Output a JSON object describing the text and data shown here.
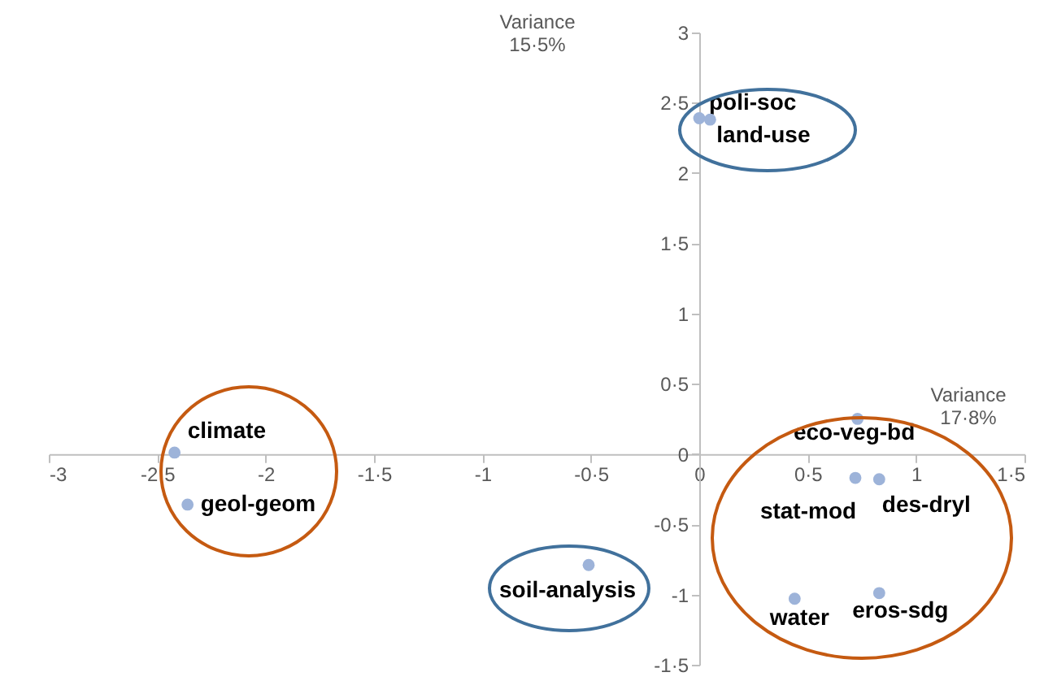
{
  "chart_data": {
    "type": "scatter",
    "xlabel": "Variance 17·8%",
    "ylabel": "Variance 15·5%",
    "marker": "circle",
    "grid": false,
    "xlim": [
      -3,
      1.5
    ],
    "ylim": [
      -1.5,
      3
    ],
    "xticks": [
      -3,
      {
        "value": -2.5,
        "label": "-2·5"
      },
      -2,
      {
        "value": -1.5,
        "label": "-1·5"
      },
      -1,
      {
        "value": -0.5,
        "label": "-0·5"
      },
      0,
      {
        "value": 0.5,
        "label": "0·5"
      },
      1,
      {
        "value": 1.5,
        "label": "1·5"
      }
    ],
    "yticks": [
      {
        "value": -1.5,
        "label": "-1·5"
      },
      -1,
      {
        "value": -0.5,
        "label": "-0·5"
      },
      0,
      {
        "value": 0.5,
        "label": "0·5"
      },
      1,
      {
        "value": 1.5,
        "label": "1·5"
      },
      2,
      {
        "value": 2.5,
        "label": "2·5"
      },
      3
    ],
    "series": [
      {
        "name": "climate",
        "color": "#9db3d9",
        "x": [
          -2.42
        ],
        "values": [
          0.01
        ]
      },
      {
        "name": "geol-geom",
        "color": "#9db3d9",
        "x": [
          -2.36
        ],
        "values": [
          -0.36
        ]
      },
      {
        "name": "poli-soc",
        "color": "#9db3d9",
        "x": [
          0.0
        ],
        "values": [
          2.39
        ]
      },
      {
        "name": "land-use",
        "color": "#9db3d9",
        "x": [
          0.05
        ],
        "values": [
          2.38
        ]
      },
      {
        "name": "soil-analysis",
        "color": "#9db3d9",
        "x": [
          -0.51
        ],
        "values": [
          -0.79
        ]
      },
      {
        "name": "eco-veg-bd",
        "color": "#9db3d9",
        "x": [
          0.73
        ],
        "values": [
          0.25
        ]
      },
      {
        "name": "stat-mod",
        "color": "#9db3d9",
        "x": [
          0.72
        ],
        "values": [
          -0.17
        ]
      },
      {
        "name": "des-dryl",
        "color": "#9db3d9",
        "x": [
          0.83
        ],
        "values": [
          -0.18
        ]
      },
      {
        "name": "water",
        "color": "#9db3d9",
        "x": [
          0.44
        ],
        "values": [
          -1.03
        ]
      },
      {
        "name": "eros-sdg",
        "color": "#9db3d9",
        "x": [
          0.83
        ],
        "values": [
          -0.99
        ]
      }
    ]
  }
}
